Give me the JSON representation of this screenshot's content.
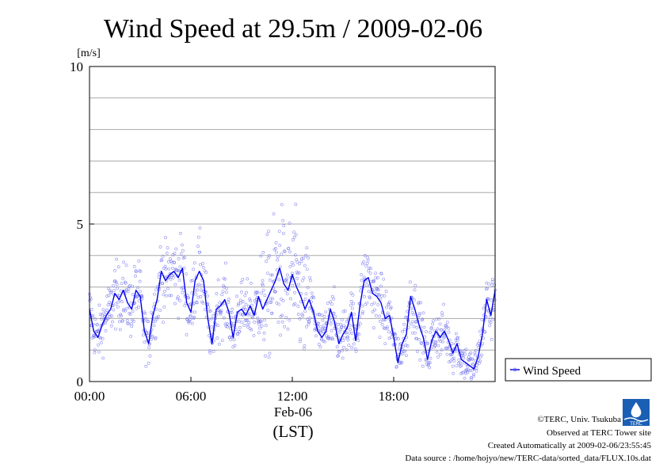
{
  "chart_data": {
    "type": "line",
    "title": "Wind Speed at 29.5m / 2009-02-06",
    "ylabel": "[m/s]",
    "xlabel_date": "Feb-06",
    "xlabel_tz": "(LST)",
    "ylim": [
      0,
      10
    ],
    "xlim_hours": [
      0,
      24
    ],
    "y_ticks": [
      "0",
      "5",
      "10"
    ],
    "x_ticks": [
      {
        "hour": 0,
        "label": "00:00"
      },
      {
        "hour": 6,
        "label": "06:00"
      },
      {
        "hour": 12,
        "label": "12:00"
      },
      {
        "hour": 18,
        "label": "18:00"
      }
    ],
    "grid": true,
    "legend": "right",
    "series": [
      {
        "name": "Wind Speed",
        "color": "#0000ee",
        "scatter_color": "#7777ee",
        "x_hours": [
          0.0,
          0.25,
          0.5,
          0.75,
          1.0,
          1.25,
          1.5,
          1.75,
          2.0,
          2.25,
          2.5,
          2.75,
          3.0,
          3.25,
          3.5,
          3.75,
          4.0,
          4.25,
          4.5,
          4.75,
          5.0,
          5.25,
          5.5,
          5.75,
          6.0,
          6.25,
          6.5,
          6.75,
          7.0,
          7.25,
          7.5,
          7.75,
          8.0,
          8.25,
          8.5,
          8.75,
          9.0,
          9.25,
          9.5,
          9.75,
          10.0,
          10.25,
          10.5,
          10.75,
          11.0,
          11.25,
          11.5,
          11.75,
          12.0,
          12.25,
          12.5,
          12.75,
          13.0,
          13.25,
          13.5,
          13.75,
          14.0,
          14.25,
          14.5,
          14.75,
          15.0,
          15.25,
          15.5,
          15.75,
          16.0,
          16.25,
          16.5,
          16.75,
          17.0,
          17.25,
          17.5,
          17.75,
          18.0,
          18.25,
          18.5,
          18.75,
          19.0,
          19.25,
          19.5,
          19.75,
          20.0,
          20.25,
          20.5,
          20.75,
          21.0,
          21.25,
          21.5,
          21.75,
          22.0,
          22.25,
          22.5,
          22.75,
          23.0,
          23.25,
          23.5,
          23.75,
          24.0
        ],
        "values": [
          2.3,
          1.6,
          1.4,
          1.8,
          2.1,
          2.3,
          2.8,
          2.6,
          2.9,
          2.5,
          2.3,
          2.9,
          2.7,
          1.6,
          1.2,
          2.1,
          2.6,
          3.5,
          3.2,
          3.4,
          3.5,
          3.3,
          3.6,
          2.5,
          2.2,
          3.2,
          3.5,
          3.2,
          2.0,
          1.2,
          2.3,
          2.4,
          2.6,
          2.2,
          1.4,
          2.2,
          2.3,
          2.1,
          2.4,
          2.1,
          2.7,
          2.3,
          2.6,
          2.9,
          3.2,
          3.6,
          3.1,
          2.9,
          3.4,
          3.0,
          2.7,
          2.3,
          2.6,
          2.2,
          1.6,
          1.4,
          1.6,
          2.3,
          1.9,
          1.2,
          1.5,
          1.7,
          2.2,
          1.3,
          2.4,
          3.2,
          3.3,
          2.8,
          2.7,
          2.5,
          2.0,
          2.1,
          1.4,
          0.6,
          1.2,
          1.5,
          2.7,
          2.3,
          1.8,
          1.4,
          0.7,
          1.3,
          1.6,
          1.4,
          1.6,
          1.3,
          0.9,
          1.2,
          0.7,
          0.6,
          0.5,
          0.4,
          0.8,
          1.5,
          2.6,
          2.1,
          2.9
        ]
      }
    ]
  },
  "credits": {
    "copyright": "©TERC, Univ. Tsukuba",
    "observed": "Observed at TERC Tower site",
    "created": "Created Automatically at 2009-02-06/23:55:45",
    "source": "Data source : /home/hojyo/new/TERC-data/sorted_data/FLUX.10s.dat",
    "logo_text": "TERC"
  }
}
